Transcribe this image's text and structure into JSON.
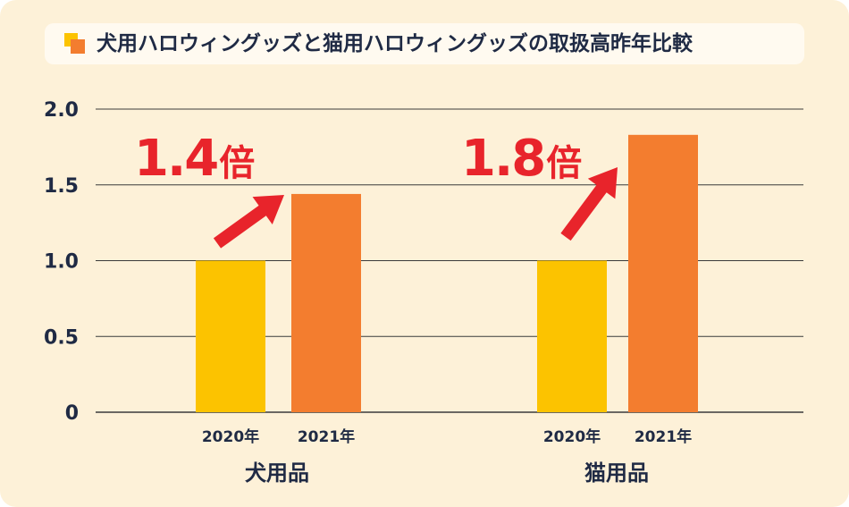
{
  "title": "犬用ハロウィングッズと猫用ハロウィングッズの取扱高昨年比較",
  "colors": {
    "background": "#fdf1d8",
    "bar_2020": "#fcc300",
    "bar_2021": "#f37d2f",
    "arrow": "#e8242b",
    "text": "#1f2a44",
    "gridline": "#3a3a3a"
  },
  "chart_data": {
    "type": "bar",
    "title": "犬用ハロウィングッズと猫用ハロウィングッズの取扱高昨年比較",
    "ylim": [
      0,
      2.0
    ],
    "yticks": [
      "0",
      "0.5",
      "1.0",
      "1.5",
      "2.0"
    ],
    "ytick_values": [
      0,
      0.5,
      1.0,
      1.5,
      2.0
    ],
    "grid": true,
    "groups": [
      {
        "label": "犬用品",
        "bars": [
          {
            "label": "2020年",
            "value": 1.0
          },
          {
            "label": "2021年",
            "value": 1.44
          }
        ],
        "annotation": {
          "number": "1.4",
          "unit": "倍"
        }
      },
      {
        "label": "猫用品",
        "bars": [
          {
            "label": "2020年",
            "value": 1.0
          },
          {
            "label": "2021年",
            "value": 1.83
          }
        ],
        "annotation": {
          "number": "1.8",
          "unit": "倍"
        }
      }
    ]
  }
}
